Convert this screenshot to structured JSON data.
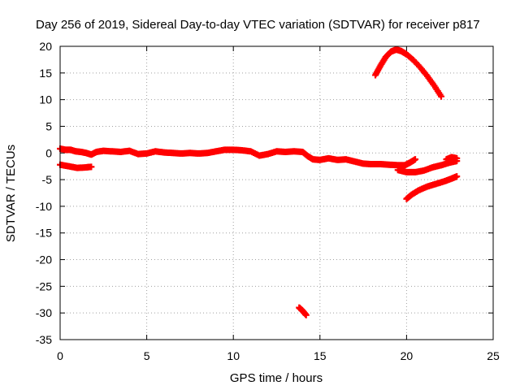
{
  "chart_data": {
    "type": "scatter",
    "title": "Day 256 of 2019, Sidereal Day-to-day VTEC variation (SDTVAR) for receiver p817",
    "xlabel": "GPS time / hours",
    "ylabel": "SDTVAR / TECUs",
    "xlim": [
      0,
      25
    ],
    "ylim": [
      -35,
      20
    ],
    "xticks": [
      "0",
      "5",
      "10",
      "15",
      "20",
      "25"
    ],
    "yticks": [
      "20",
      "15",
      "10",
      "5",
      "0",
      "-5",
      "-10",
      "-15",
      "-20",
      "-25",
      "-30",
      "-35"
    ],
    "grid": true,
    "marker_color": "#ff0000",
    "series": [
      {
        "points": [
          [
            0.0,
            0.8
          ],
          [
            0.3,
            0.6
          ],
          [
            0.6,
            0.6
          ],
          [
            0.9,
            0.3
          ],
          [
            1.2,
            0.2
          ],
          [
            1.5,
            0.0
          ],
          [
            1.8,
            -0.3
          ],
          [
            2.1,
            0.2
          ],
          [
            2.5,
            0.4
          ],
          [
            3.0,
            0.3
          ],
          [
            3.5,
            0.2
          ],
          [
            4.0,
            0.4
          ],
          [
            4.5,
            -0.2
          ],
          [
            5.0,
            -0.1
          ],
          [
            5.5,
            0.3
          ],
          [
            6.0,
            0.1
          ],
          [
            6.5,
            0.0
          ],
          [
            7.0,
            -0.1
          ],
          [
            7.5,
            0.0
          ],
          [
            8.0,
            -0.1
          ],
          [
            8.5,
            0.0
          ],
          [
            9.0,
            0.3
          ],
          [
            9.5,
            0.6
          ],
          [
            10.0,
            0.6
          ],
          [
            10.5,
            0.5
          ],
          [
            11.0,
            0.3
          ],
          [
            11.5,
            -0.5
          ],
          [
            12.0,
            -0.2
          ],
          [
            12.5,
            0.3
          ],
          [
            13.0,
            0.2
          ],
          [
            13.5,
            0.3
          ],
          [
            14.0,
            0.2
          ],
          [
            14.3,
            -0.6
          ],
          [
            14.6,
            -1.2
          ],
          [
            15.0,
            -1.3
          ],
          [
            15.5,
            -1.0
          ],
          [
            16.0,
            -1.3
          ],
          [
            16.5,
            -1.2
          ],
          [
            17.0,
            -1.6
          ],
          [
            17.5,
            -2.0
          ],
          [
            18.0,
            -2.1
          ],
          [
            18.5,
            -2.1
          ],
          [
            19.0,
            -2.2
          ],
          [
            19.5,
            -2.3
          ],
          [
            19.9,
            -2.3
          ],
          [
            20.2,
            -1.8
          ],
          [
            20.5,
            -1.2
          ],
          [
            0.0,
            -2.2
          ],
          [
            0.5,
            -2.5
          ],
          [
            1.0,
            -2.8
          ],
          [
            1.5,
            -2.7
          ],
          [
            1.8,
            -2.6
          ],
          [
            19.5,
            -3.2
          ],
          [
            20.0,
            -3.6
          ],
          [
            20.5,
            -3.6
          ],
          [
            21.0,
            -3.3
          ],
          [
            21.5,
            -2.7
          ],
          [
            22.0,
            -2.3
          ],
          [
            22.5,
            -1.8
          ],
          [
            22.9,
            -1.5
          ],
          [
            22.3,
            -1.2
          ],
          [
            22.6,
            -0.8
          ],
          [
            22.9,
            -1.0
          ],
          [
            20.0,
            -8.6
          ],
          [
            20.3,
            -7.8
          ],
          [
            20.7,
            -7.0
          ],
          [
            21.2,
            -6.3
          ],
          [
            21.7,
            -5.8
          ],
          [
            22.2,
            -5.3
          ],
          [
            22.6,
            -4.8
          ],
          [
            22.9,
            -4.4
          ],
          [
            18.2,
            14.6
          ],
          [
            18.5,
            16.4
          ],
          [
            18.8,
            18.0
          ],
          [
            19.1,
            19.0
          ],
          [
            19.4,
            19.4
          ],
          [
            19.7,
            19.1
          ],
          [
            20.0,
            18.5
          ],
          [
            20.4,
            17.4
          ],
          [
            20.8,
            16.0
          ],
          [
            21.2,
            14.4
          ],
          [
            21.6,
            12.6
          ],
          [
            22.0,
            10.6
          ],
          [
            13.8,
            -29.0
          ],
          [
            14.0,
            -29.6
          ],
          [
            14.2,
            -30.4
          ]
        ]
      }
    ]
  }
}
